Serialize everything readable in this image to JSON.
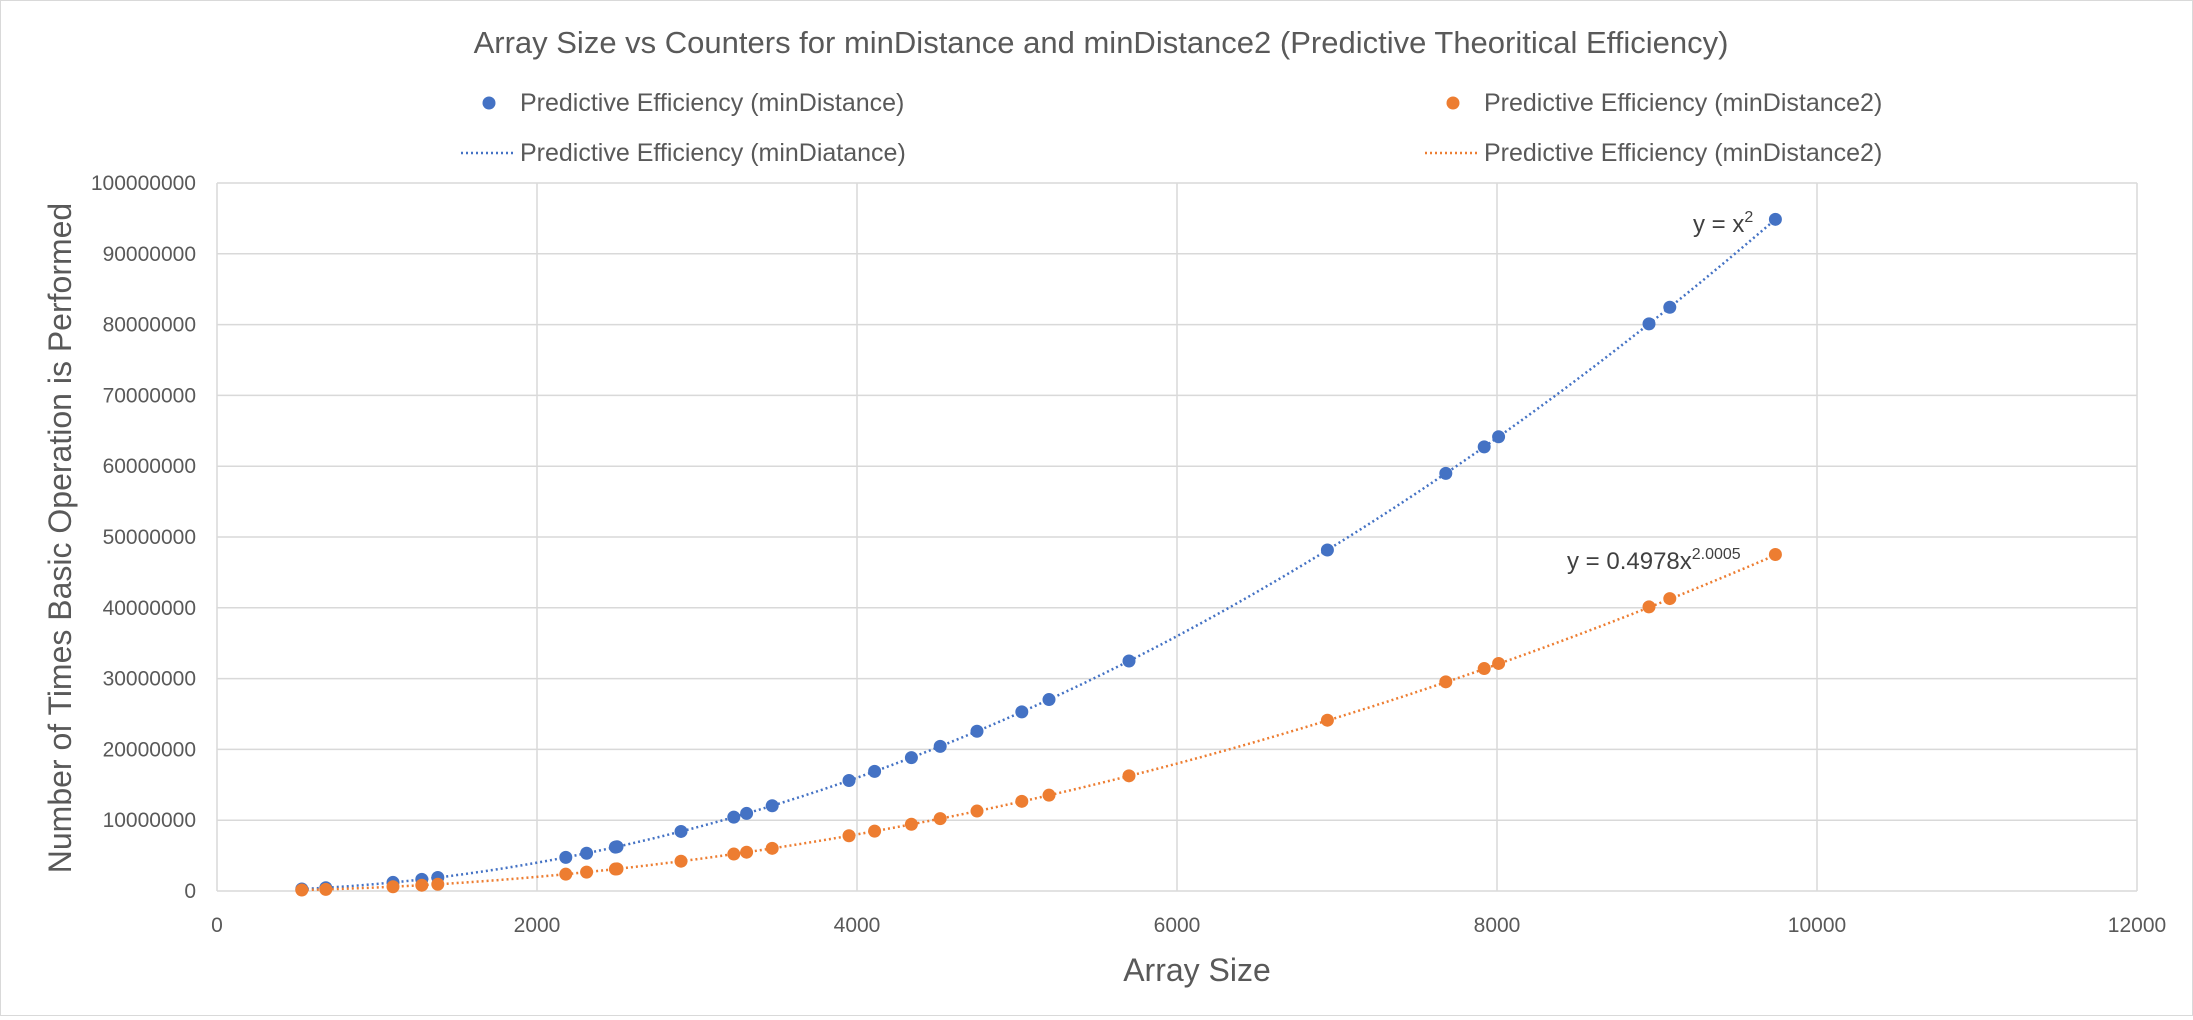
{
  "chart_data": {
    "type": "scatter",
    "title": "Array Size vs Counters for minDistance and minDistance2 (Predictive Theoritical Efficiency)",
    "xlabel": "Array Size",
    "ylabel": "Number of Times Basic Operation is Performed",
    "xlim": [
      0,
      12000
    ],
    "ylim": [
      0,
      100000000
    ],
    "x_ticks": [
      "0",
      "2000",
      "4000",
      "6000",
      "8000",
      "10000",
      "12000"
    ],
    "y_ticks": [
      "0",
      "10000000",
      "20000000",
      "30000000",
      "40000000",
      "50000000",
      "60000000",
      "70000000",
      "80000000",
      "90000000",
      "100000000"
    ],
    "grid": true,
    "legend_position": "top",
    "series": [
      {
        "name": "Predictive Efficiency (minDistance)",
        "color": "#4472c4",
        "marker": "circle",
        "x": [
          530,
          680,
          1100,
          1280,
          1380,
          2180,
          2310,
          2490,
          2500,
          2900,
          3230,
          3310,
          3470,
          3950,
          4110,
          4340,
          4520,
          4750,
          5030,
          5200,
          5700,
          6940,
          7680,
          7920,
          8010,
          8950,
          9080,
          9740
        ],
        "y": [
          280900,
          462400,
          1210000,
          1638400,
          1904400,
          4752400,
          5336100,
          6200100,
          6250000,
          8410000,
          10432900,
          10956100,
          12040900,
          15602500,
          16892100,
          18835600,
          20430400,
          22562500,
          25300900,
          27040000,
          32490000,
          48163600,
          58982400,
          62726400,
          64160100,
          80102500,
          82446400,
          94867600
        ]
      },
      {
        "name": "Predictive Efficiency (minDistance2)",
        "color": "#ed7d31",
        "marker": "circle",
        "x": [
          530,
          680,
          1100,
          1280,
          1380,
          2180,
          2310,
          2490,
          2500,
          2900,
          3230,
          3310,
          3470,
          3950,
          4110,
          4340,
          4520,
          4750,
          5030,
          5200,
          5700,
          6940,
          7680,
          7920,
          8010,
          8950,
          9080,
          9740
        ],
        "y": [
          140185,
          230968,
          604945,
          819405,
          952495,
          2377111,
          2669218,
          3101661,
          3126897,
          4207675,
          5220125,
          5482033,
          6024915,
          7807659,
          8453581,
          9426848,
          10225900,
          11293700,
          12665700,
          13537400,
          16268000,
          24122300,
          29544200,
          31419500,
          32139200,
          40127500,
          41302700,
          47525300
        ]
      }
    ],
    "trendlines": [
      {
        "name": "Predictive Efficiency (minDiatance)",
        "series_index": 0,
        "style": "dotted",
        "color": "#4472c4",
        "type": "power",
        "coefficient": 1,
        "exponent": 2,
        "equation": "y = x",
        "equation_power": "2"
      },
      {
        "name": "Predictive Efficiency (minDistance2)",
        "series_index": 1,
        "style": "dotted",
        "color": "#ed7d31",
        "type": "power",
        "coefficient": 0.4978,
        "exponent": 2.0005,
        "equation": "y = 0.4978x",
        "equation_power": "2.0005"
      }
    ]
  }
}
